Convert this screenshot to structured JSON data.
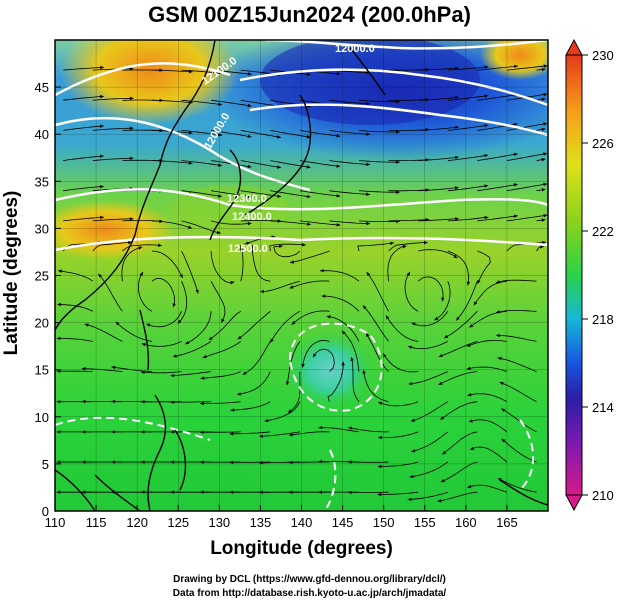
{
  "title": "GSM 00Z15Jun2024 (200.0hPa)",
  "axes": {
    "xlabel": "Longitude (degrees)",
    "ylabel": "Latitude  (degrees)",
    "x_ticks": [
      "110",
      "115",
      "120",
      "125",
      "130",
      "135",
      "140",
      "145",
      "150",
      "155",
      "160",
      "165"
    ],
    "y_ticks": [
      "0",
      "5",
      "10",
      "15",
      "20",
      "25",
      "30",
      "35",
      "40",
      "45"
    ],
    "x_range": [
      110,
      170
    ],
    "y_range": [
      0,
      50
    ]
  },
  "colorbar": {
    "ticks": [
      "230",
      "226",
      "222",
      "218",
      "214",
      "210"
    ],
    "range": [
      210,
      230
    ],
    "colors": [
      "#d81a8a",
      "#2a1fa8",
      "#1a55e0",
      "#15b8d8",
      "#2ad24a",
      "#8ad21a",
      "#e0e01a",
      "#f5a01a",
      "#e63a1a"
    ]
  },
  "contour_labels": [
    "12000.0",
    "12000.0",
    "12300.0",
    "12400.0",
    "12500.0",
    "12100.0"
  ],
  "credits": {
    "line1": "Drawing by DCL (https://www.gfd-dennou.org/library/dcl/)",
    "line2": "Data from http://database.rish.kyoto-u.ac.jp/arch/jmadata/"
  }
}
